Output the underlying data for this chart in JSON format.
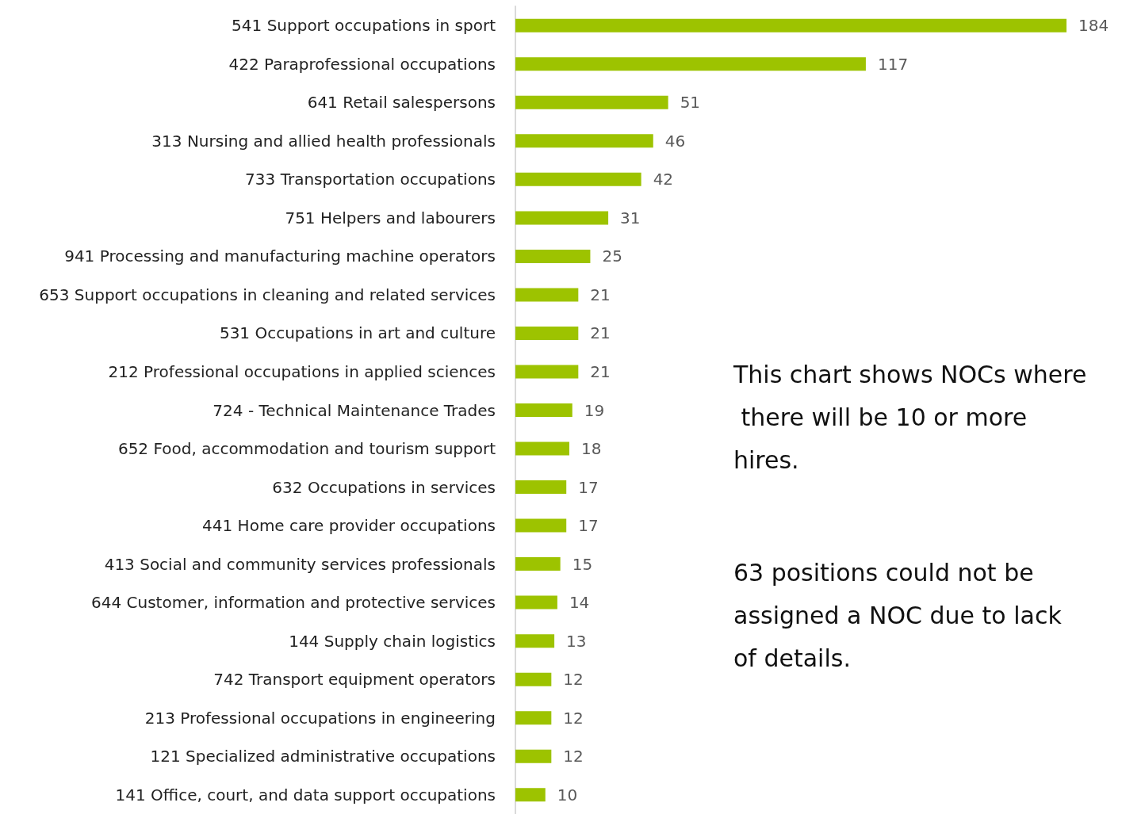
{
  "chart_data": {
    "type": "bar",
    "orientation": "horizontal",
    "data_labels": true,
    "categories": [
      "541 Support occupations in sport",
      "422 Paraprofessional occupations",
      "641 Retail salespersons",
      "313 Nursing and allied health professionals",
      "733 Transportation occupations",
      "751 Helpers and labourers",
      "941 Processing and manufacturing machine operators",
      "653 Support occupations in cleaning and related services",
      "531 Occupations in art and culture",
      "212 Professional occupations in applied sciences",
      "724 - Technical Maintenance Trades",
      "652 Food, accommodation and tourism support",
      "632 Occupations in services",
      "441 Home care provider occupations",
      "413 Social and community services professionals",
      "644 Customer, information and protective services",
      "144 Supply chain logistics",
      "742 Transport equipment operators",
      "213 Professional occupations in engineering",
      "121 Specialized administrative occupations",
      "141 Office, court, and data support occupations"
    ],
    "values": [
      184,
      117,
      51,
      46,
      42,
      31,
      25,
      21,
      21,
      21,
      19,
      18,
      17,
      17,
      15,
      14,
      13,
      12,
      12,
      12,
      10
    ],
    "color": "#9dc300",
    "annotations": [
      "This chart shows NOCs where there will be 10 or more hires.",
      "63 positions could not be assigned a NOC due to lack of details."
    ]
  }
}
